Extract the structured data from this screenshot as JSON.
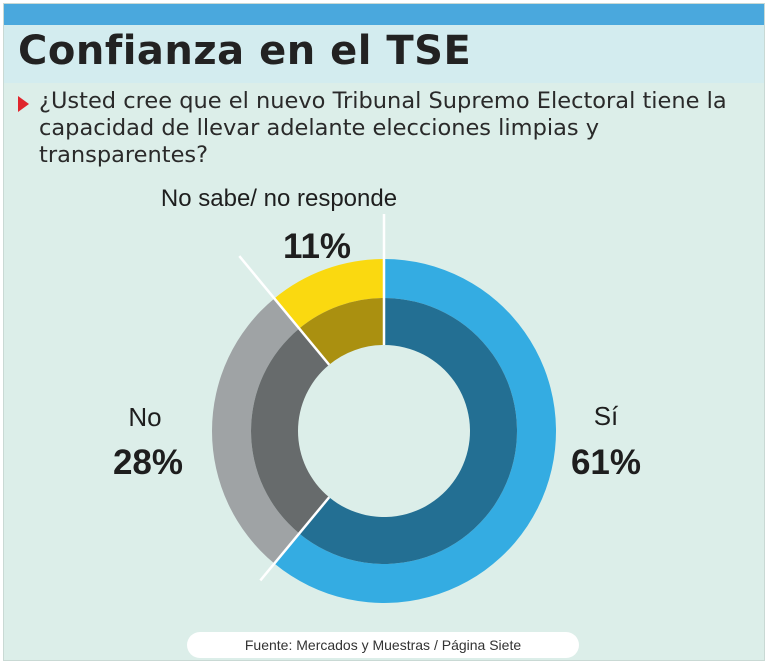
{
  "header": {
    "title_plain": "Confianza en el ",
    "title_bold": "TSE"
  },
  "question": "¿Usted cree que el nuevo Tribunal Supremo Electoral tiene la capacidad de llevar adelante elecciones limpias y transparentes?",
  "source": "Fuente: Mercados y Muestras / Página Siete",
  "colors": {
    "si": "#34ace2",
    "si_inner": "#236f93",
    "no": "#9fa3a5",
    "no_inner": "#676b6c",
    "nsnr": "#fad910",
    "nsnr_inner": "#aa9010",
    "background": "#dceee9",
    "accent_red": "#e0252c"
  },
  "chart_data": {
    "type": "pie",
    "subtype": "donut",
    "categories": [
      "Sí",
      "No",
      "No sabe/ no responde"
    ],
    "values": [
      61,
      28,
      11
    ],
    "value_labels": [
      "61%",
      "28%",
      "11%"
    ],
    "unit": "%"
  }
}
